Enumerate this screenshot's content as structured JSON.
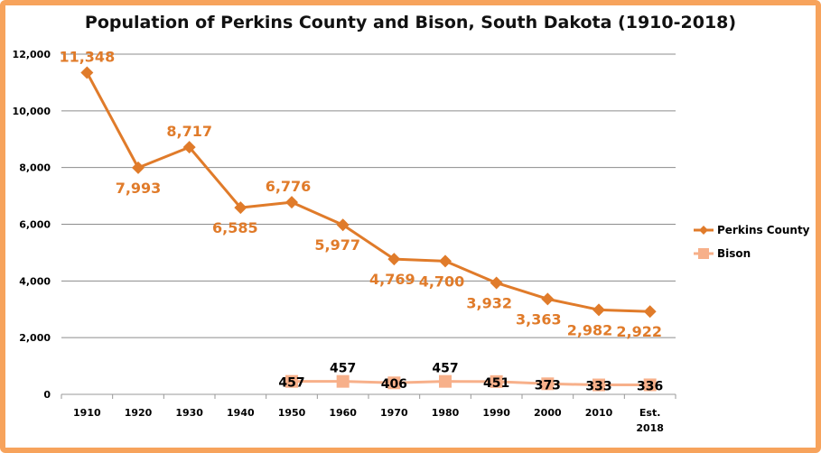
{
  "chart_data": {
    "type": "line",
    "title": "Population of Perkins County and Bison, South Dakota (1910-2018)",
    "categories": [
      [
        "1910"
      ],
      [
        "1920"
      ],
      [
        "1930"
      ],
      [
        "1940"
      ],
      [
        "1950"
      ],
      [
        "1960"
      ],
      [
        "1970"
      ],
      [
        "1980"
      ],
      [
        "1990"
      ],
      [
        "2000"
      ],
      [
        "2010"
      ],
      [
        "Est.",
        "2018"
      ]
    ],
    "ylim": [
      0,
      12000
    ],
    "yticks": [
      0,
      2000,
      4000,
      6000,
      8000,
      10000,
      12000
    ],
    "ytick_labels": [
      "0",
      "2,000",
      "4,000",
      "6,000",
      "8,000",
      "10,000",
      "12,000"
    ],
    "grid": true,
    "legend": "right",
    "series": [
      {
        "name": "Perkins County",
        "color": "#e07b2a",
        "marker": "diamond",
        "values": [
          11348,
          7993,
          8717,
          6585,
          6776,
          5977,
          4769,
          4700,
          3932,
          3363,
          2982,
          2922
        ],
        "labels": [
          "11,348",
          "7,993",
          "8,717",
          "6,585",
          "6,776",
          "5,977",
          "4,769",
          "4,700",
          "3,932",
          "3,363",
          "2,982",
          "2,922"
        ]
      },
      {
        "name": "Bison",
        "color": "#f7b08a",
        "marker": "square",
        "values": [
          null,
          null,
          null,
          null,
          457,
          457,
          406,
          457,
          451,
          373,
          333,
          336
        ],
        "labels": [
          null,
          null,
          null,
          null,
          "457",
          "457",
          "406",
          "457",
          "451",
          "373",
          "333",
          "336"
        ]
      }
    ]
  }
}
